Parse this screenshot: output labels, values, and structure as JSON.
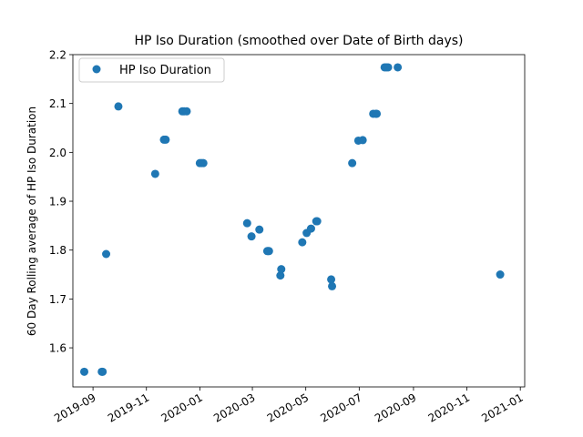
{
  "chart_data": {
    "type": "scatter",
    "title": "HP Iso Duration (smoothed over Date of Birth days)",
    "xlabel": "",
    "ylabel": "60 Day Rolling average of HP Iso Duration",
    "xlim": [
      "2019-08-09",
      "2021-01-06"
    ],
    "ylim": [
      1.52,
      2.2
    ],
    "x_ticks": [
      "2019-09",
      "2019-11",
      "2020-01",
      "2020-03",
      "2020-05",
      "2020-07",
      "2020-09",
      "2020-11",
      "2021-01"
    ],
    "x_tick_dates": [
      "2019-09-01",
      "2019-11-01",
      "2020-01-01",
      "2020-03-01",
      "2020-05-01",
      "2020-07-01",
      "2020-09-01",
      "2020-11-01",
      "2021-01-01"
    ],
    "y_ticks": [
      1.6,
      1.7,
      1.8,
      1.9,
      2.0,
      2.1,
      2.2
    ],
    "grid": false,
    "legend": {
      "position": "upper left",
      "entries": [
        "HP Iso Duration"
      ]
    },
    "series": [
      {
        "name": "HP Iso Duration",
        "color": "#1f77b4",
        "points": [
          [
            "2019-08-22",
            1.551
          ],
          [
            "2019-09-11",
            1.551
          ],
          [
            "2019-09-12",
            1.551
          ],
          [
            "2019-09-16",
            1.792
          ],
          [
            "2019-09-30",
            2.094
          ],
          [
            "2019-11-11",
            1.956
          ],
          [
            "2019-11-21",
            2.026
          ],
          [
            "2019-11-23",
            2.026
          ],
          [
            "2019-12-12",
            2.084
          ],
          [
            "2019-12-14",
            2.084
          ],
          [
            "2019-12-17",
            2.084
          ],
          [
            "2020-01-01",
            1.978
          ],
          [
            "2020-01-03",
            1.978
          ],
          [
            "2020-01-05",
            1.978
          ],
          [
            "2020-02-24",
            1.855
          ],
          [
            "2020-02-29",
            1.828
          ],
          [
            "2020-03-09",
            1.842
          ],
          [
            "2020-03-18",
            1.798
          ],
          [
            "2020-03-19",
            1.798
          ],
          [
            "2020-03-20",
            1.798
          ],
          [
            "2020-04-02",
            1.748
          ],
          [
            "2020-04-03",
            1.761
          ],
          [
            "2020-04-27",
            1.816
          ],
          [
            "2020-05-02",
            1.835
          ],
          [
            "2020-05-07",
            1.844
          ],
          [
            "2020-05-13",
            1.859
          ],
          [
            "2020-05-14",
            1.859
          ],
          [
            "2020-05-30",
            1.74
          ],
          [
            "2020-05-31",
            1.726
          ],
          [
            "2020-06-23",
            1.978
          ],
          [
            "2020-06-30",
            2.024
          ],
          [
            "2020-07-05",
            2.025
          ],
          [
            "2020-07-17",
            2.079
          ],
          [
            "2020-07-20",
            2.079
          ],
          [
            "2020-07-21",
            2.079
          ],
          [
            "2020-07-30",
            2.174
          ],
          [
            "2020-08-01",
            2.174
          ],
          [
            "2020-08-03",
            2.174
          ],
          [
            "2020-08-14",
            2.174
          ],
          [
            "2020-12-09",
            1.75
          ]
        ]
      }
    ]
  }
}
